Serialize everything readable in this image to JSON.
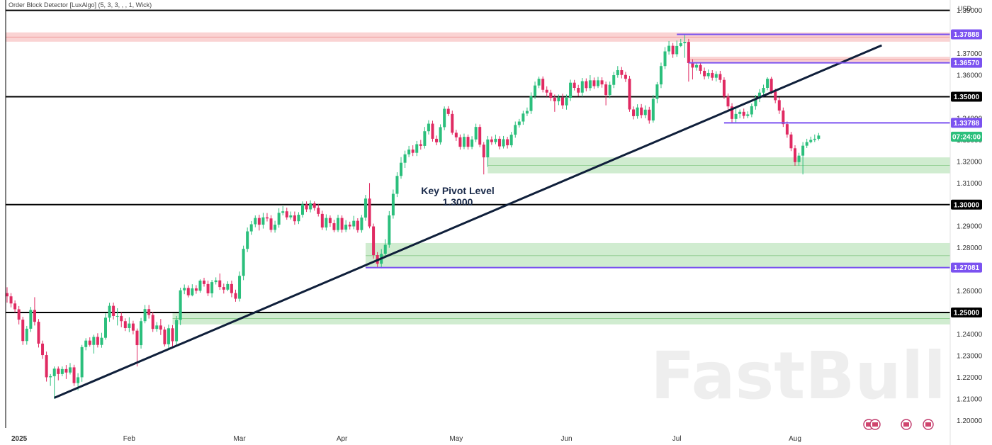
{
  "indicator_label": "Order Block Detector [LuxAlgo] (5, 3, 3, , , 1, Wick)",
  "watermark": "FastBull",
  "chart_data": {
    "type": "candlestick",
    "currency": "USD",
    "ylim": [
      1.1965,
      1.3935
    ],
    "xlim": [
      0,
      222
    ],
    "y_ticks": [
      {
        "value": 1.39,
        "label": "1.39000"
      },
      {
        "value": 1.37,
        "label": "1.37000"
      },
      {
        "value": 1.36,
        "label": "1.36000"
      },
      {
        "value": 1.34,
        "label": "1.34000"
      },
      {
        "value": 1.33,
        "label": "1.33000"
      },
      {
        "value": 1.32,
        "label": "1.32000"
      },
      {
        "value": 1.31,
        "label": "1.31000"
      },
      {
        "value": 1.29,
        "label": "1.29000"
      },
      {
        "value": 1.28,
        "label": "1.28000"
      },
      {
        "value": 1.26,
        "label": "1.26000"
      },
      {
        "value": 1.24,
        "label": "1.24000"
      },
      {
        "value": 1.23,
        "label": "1.23000"
      },
      {
        "value": 1.22,
        "label": "1.22000"
      },
      {
        "value": 1.21,
        "label": "1.21000"
      },
      {
        "value": 1.2,
        "label": "1.20000"
      }
    ],
    "x_ticks": [
      {
        "x": 0,
        "label": "2025",
        "bold": true
      },
      {
        "x": 31,
        "label": "Feb"
      },
      {
        "x": 59,
        "label": "Mar"
      },
      {
        "x": 85,
        "label": "Apr"
      },
      {
        "x": 114,
        "label": "May"
      },
      {
        "x": 142,
        "label": "Jun"
      },
      {
        "x": 170,
        "label": "Jul"
      },
      {
        "x": 200,
        "label": "Aug"
      }
    ],
    "horizontal_levels": [
      {
        "value": 1.39,
        "color": "#000000",
        "badge": null
      },
      {
        "value": 1.35,
        "color": "#000000",
        "label": "1.35000"
      },
      {
        "value": 1.3,
        "color": "#000000",
        "label": "1.30000"
      },
      {
        "value": 1.25,
        "color": "#000000",
        "label": "1.25000"
      }
    ],
    "purple_levels": [
      {
        "value": 1.37888,
        "x_start": 170,
        "label": "1.37888"
      },
      {
        "value": 1.3657,
        "x_start": 173,
        "label": "1.36570"
      },
      {
        "value": 1.33788,
        "x_start": 182,
        "label": "1.33788"
      },
      {
        "value": 1.27081,
        "x_start": 91,
        "label": "1.27081"
      }
    ],
    "current_price": {
      "label": "07:24:00",
      "value": 1.3315
    },
    "zones": [
      {
        "y1": 1.3798,
        "y2": 1.3755,
        "x_start": 0,
        "color": "red"
      },
      {
        "y1": 1.3685,
        "y2": 1.3657,
        "x_start": 173,
        "color": "red"
      },
      {
        "y1": 1.3219,
        "y2": 1.3145,
        "x_start": 122,
        "color": "green"
      },
      {
        "y1": 1.2822,
        "y2": 1.2705,
        "x_start": 91,
        "color": "green"
      },
      {
        "y1": 1.25,
        "y2": 1.2445,
        "x_start": 42,
        "color": "green"
      }
    ],
    "trendline": {
      "x1": 12,
      "y1": 1.2105,
      "x2": 222,
      "y2": 1.3738
    },
    "annotation": {
      "line1": "Key Pivot Level",
      "line2": "1.3000"
    },
    "candles": [
      [
        1.259,
        1.2575,
        1.2617,
        1.2546
      ],
      [
        1.2575,
        1.2542,
        1.259,
        1.2524
      ],
      [
        1.2542,
        1.2515,
        1.2556,
        1.25
      ],
      [
        1.2515,
        1.2467,
        1.253,
        1.2445
      ],
      [
        1.2467,
        1.2368,
        1.248,
        1.235
      ],
      [
        1.2368,
        1.2425,
        1.2438,
        1.2351
      ],
      [
        1.2425,
        1.2512,
        1.2526,
        1.241
      ],
      [
        1.2512,
        1.2457,
        1.2571,
        1.244
      ],
      [
        1.2457,
        1.2356,
        1.247,
        1.2338
      ],
      [
        1.2356,
        1.2303,
        1.237,
        1.2285
      ],
      [
        1.2303,
        1.22,
        1.2319,
        1.218
      ],
      [
        1.22,
        1.2205,
        1.2215,
        1.216
      ],
      [
        1.2205,
        1.224,
        1.225,
        1.21
      ],
      [
        1.224,
        1.2215,
        1.225,
        1.2186
      ],
      [
        1.2215,
        1.2238,
        1.225,
        1.2205
      ],
      [
        1.2238,
        1.2222,
        1.2257,
        1.2192
      ],
      [
        1.2222,
        1.2246,
        1.2266,
        1.2213
      ],
      [
        1.2246,
        1.2173,
        1.2258,
        1.216
      ],
      [
        1.2173,
        1.22,
        1.2219,
        1.214
      ],
      [
        1.22,
        1.234,
        1.235,
        1.2179
      ],
      [
        1.234,
        1.237,
        1.2381,
        1.2325
      ],
      [
        1.237,
        1.235,
        1.2385,
        1.2342
      ],
      [
        1.235,
        1.2387,
        1.2397,
        1.231
      ],
      [
        1.2387,
        1.235,
        1.2404,
        1.2338
      ],
      [
        1.235,
        1.2383,
        1.2406,
        1.2337
      ],
      [
        1.2383,
        1.2476,
        1.2496,
        1.2374
      ],
      [
        1.2476,
        1.2531,
        1.2545,
        1.2457
      ],
      [
        1.2531,
        1.2484,
        1.2546,
        1.2468
      ],
      [
        1.2484,
        1.2484,
        1.252,
        1.244
      ],
      [
        1.2484,
        1.246,
        1.25,
        1.2432
      ],
      [
        1.246,
        1.2428,
        1.2473,
        1.2414
      ],
      [
        1.2428,
        1.2449,
        1.2478,
        1.2409
      ],
      [
        1.2449,
        1.2416,
        1.2462,
        1.2399
      ],
      [
        1.2416,
        1.2349,
        1.2426,
        1.225
      ],
      [
        1.2349,
        1.246,
        1.2475,
        1.2333
      ],
      [
        1.246,
        1.2516,
        1.2535,
        1.245
      ],
      [
        1.2516,
        1.2489,
        1.2535,
        1.2472
      ],
      [
        1.2489,
        1.2424,
        1.2503,
        1.241
      ],
      [
        1.2424,
        1.244,
        1.2456,
        1.2411
      ],
      [
        1.244,
        1.2421,
        1.247,
        1.2396
      ],
      [
        1.2421,
        1.2353,
        1.2434,
        1.2343
      ],
      [
        1.2353,
        1.2427,
        1.2444,
        1.2335
      ],
      [
        1.2427,
        1.2367,
        1.2442,
        1.2343
      ],
      [
        1.2367,
        1.2466,
        1.2484,
        1.2346
      ],
      [
        1.2466,
        1.2603,
        1.2615,
        1.2442
      ],
      [
        1.2603,
        1.2614,
        1.263,
        1.2585
      ],
      [
        1.2614,
        1.258,
        1.2626,
        1.257
      ],
      [
        1.258,
        1.2612,
        1.2631,
        1.2575
      ],
      [
        1.2612,
        1.2601,
        1.2627,
        1.2587
      ],
      [
        1.2601,
        1.2648,
        1.2654,
        1.2592
      ],
      [
        1.2648,
        1.2632,
        1.2661,
        1.262
      ],
      [
        1.2632,
        1.2589,
        1.2648,
        1.2576
      ],
      [
        1.2589,
        1.2641,
        1.2651,
        1.257
      ],
      [
        1.2641,
        1.2649,
        1.2663,
        1.263
      ],
      [
        1.2649,
        1.2618,
        1.2681,
        1.2605
      ],
      [
        1.2618,
        1.2606,
        1.2634,
        1.2588
      ],
      [
        1.2606,
        1.2632,
        1.2645,
        1.2599
      ],
      [
        1.2632,
        1.259,
        1.2648,
        1.2571
      ],
      [
        1.259,
        1.2564,
        1.2606,
        1.255
      ],
      [
        1.2564,
        1.267,
        1.269,
        1.2551
      ],
      [
        1.267,
        1.2795,
        1.281,
        1.265
      ],
      [
        1.2795,
        1.2876,
        1.2894,
        1.278
      ],
      [
        1.2876,
        1.2909,
        1.2924,
        1.286
      ],
      [
        1.2909,
        1.2938,
        1.295,
        1.2895
      ],
      [
        1.2938,
        1.2907,
        1.2953,
        1.288
      ],
      [
        1.2907,
        1.2941,
        1.2962,
        1.2889
      ],
      [
        1.2941,
        1.2936,
        1.2961,
        1.2922
      ],
      [
        1.2936,
        1.2883,
        1.2951,
        1.2871
      ],
      [
        1.2883,
        1.2907,
        1.2925,
        1.287
      ],
      [
        1.2907,
        1.2962,
        1.2983,
        1.2893
      ],
      [
        1.2962,
        1.2969,
        1.2993,
        1.295
      ],
      [
        1.2969,
        1.2941,
        1.2986,
        1.293
      ],
      [
        1.2941,
        1.295,
        1.2968,
        1.2931
      ],
      [
        1.295,
        1.2923,
        1.2968,
        1.2907
      ],
      [
        1.2923,
        1.2953,
        1.2965,
        1.291
      ],
      [
        1.2953,
        1.3001,
        1.3015,
        1.294
      ],
      [
        1.3001,
        1.2978,
        1.3015,
        1.2966
      ],
      [
        1.2978,
        1.3006,
        1.302,
        1.2964
      ],
      [
        1.3006,
        1.2985,
        1.3015,
        1.2972
      ],
      [
        1.2985,
        1.2957,
        1.3002,
        1.2945
      ],
      [
        1.2957,
        1.2894,
        1.2972,
        1.2883
      ],
      [
        1.2894,
        1.2938,
        1.2955,
        1.288
      ],
      [
        1.2938,
        1.2914,
        1.295,
        1.2897
      ],
      [
        1.2914,
        1.2882,
        1.293,
        1.2872
      ],
      [
        1.2882,
        1.2938,
        1.2953,
        1.2873
      ],
      [
        1.2938,
        1.2884,
        1.295,
        1.287
      ],
      [
        1.2884,
        1.2907,
        1.2928,
        1.2873
      ],
      [
        1.2907,
        1.2899,
        1.2921,
        1.2885
      ],
      [
        1.2899,
        1.2925,
        1.2948,
        1.2886
      ],
      [
        1.2925,
        1.2882,
        1.2937,
        1.287
      ],
      [
        1.2882,
        1.294,
        1.2952,
        1.287
      ],
      [
        1.294,
        1.3028,
        1.3045,
        1.2925
      ],
      [
        1.3028,
        1.2899,
        1.31,
        1.289
      ],
      [
        1.2899,
        1.2766,
        1.2912,
        1.275
      ],
      [
        1.2766,
        1.2726,
        1.278,
        1.2708
      ],
      [
        1.2726,
        1.2772,
        1.2794,
        1.2705
      ],
      [
        1.2772,
        1.2814,
        1.284,
        1.276
      ],
      [
        1.2814,
        1.295,
        1.297,
        1.28
      ],
      [
        1.295,
        1.305,
        1.307,
        1.2935
      ],
      [
        1.305,
        1.3133,
        1.315,
        1.3035
      ],
      [
        1.3133,
        1.3194,
        1.322,
        1.312
      ],
      [
        1.3194,
        1.3233,
        1.325,
        1.317
      ],
      [
        1.3233,
        1.3255,
        1.3272,
        1.322
      ],
      [
        1.3255,
        1.324,
        1.3275,
        1.3225
      ],
      [
        1.324,
        1.328,
        1.3295,
        1.3225
      ],
      [
        1.328,
        1.3272,
        1.33,
        1.3255
      ],
      [
        1.3272,
        1.334,
        1.336,
        1.326
      ],
      [
        1.334,
        1.3375,
        1.3391,
        1.3325
      ],
      [
        1.3375,
        1.3305,
        1.3389,
        1.3292
      ],
      [
        1.3305,
        1.3289,
        1.332,
        1.3275
      ],
      [
        1.3289,
        1.3359,
        1.3372,
        1.3278
      ],
      [
        1.3359,
        1.3444,
        1.3455,
        1.3345
      ],
      [
        1.3444,
        1.342,
        1.3456,
        1.341
      ],
      [
        1.342,
        1.3333,
        1.3436,
        1.3324
      ],
      [
        1.3333,
        1.3312,
        1.3347,
        1.3295
      ],
      [
        1.3312,
        1.3268,
        1.3325,
        1.3255
      ],
      [
        1.3268,
        1.3314,
        1.3329,
        1.3257
      ],
      [
        1.3314,
        1.3268,
        1.3325,
        1.3255
      ],
      [
        1.3268,
        1.3302,
        1.3317,
        1.3257
      ],
      [
        1.3302,
        1.336,
        1.3375,
        1.329
      ],
      [
        1.336,
        1.3278,
        1.3372,
        1.3266
      ],
      [
        1.3278,
        1.3219,
        1.329,
        1.314
      ],
      [
        1.3219,
        1.3302,
        1.3318,
        1.3175
      ],
      [
        1.3302,
        1.329,
        1.3316,
        1.3277
      ],
      [
        1.329,
        1.3305,
        1.3324,
        1.328
      ],
      [
        1.3305,
        1.327,
        1.3317,
        1.3256
      ],
      [
        1.327,
        1.3303,
        1.3318,
        1.326
      ],
      [
        1.3303,
        1.3275,
        1.3314,
        1.326
      ],
      [
        1.3275,
        1.3324,
        1.3337,
        1.3265
      ],
      [
        1.3324,
        1.3369,
        1.3385,
        1.331
      ],
      [
        1.3369,
        1.3385,
        1.3397,
        1.3357
      ],
      [
        1.3385,
        1.3422,
        1.3435,
        1.337
      ],
      [
        1.3422,
        1.3434,
        1.345,
        1.341
      ],
      [
        1.3434,
        1.3504,
        1.352,
        1.342
      ],
      [
        1.3504,
        1.3552,
        1.357,
        1.349
      ],
      [
        1.3552,
        1.3583,
        1.3593,
        1.354
      ],
      [
        1.3583,
        1.3532,
        1.3594,
        1.352
      ],
      [
        1.3532,
        1.3519,
        1.3548,
        1.35
      ],
      [
        1.3519,
        1.3495,
        1.3532,
        1.348
      ],
      [
        1.3495,
        1.3479,
        1.351,
        1.343
      ],
      [
        1.3479,
        1.3496,
        1.351,
        1.3461
      ],
      [
        1.3496,
        1.346,
        1.3514,
        1.3443
      ],
      [
        1.346,
        1.3495,
        1.351,
        1.344
      ],
      [
        1.3495,
        1.3565,
        1.3579,
        1.348
      ],
      [
        1.3565,
        1.3541,
        1.3578,
        1.3529
      ],
      [
        1.3541,
        1.3519,
        1.3555,
        1.3503
      ],
      [
        1.3519,
        1.3572,
        1.3587,
        1.35
      ],
      [
        1.3572,
        1.354,
        1.3585,
        1.3525
      ],
      [
        1.354,
        1.3576,
        1.36,
        1.3528
      ],
      [
        1.3576,
        1.3549,
        1.3589,
        1.3536
      ],
      [
        1.3549,
        1.3576,
        1.3592,
        1.354
      ],
      [
        1.3576,
        1.3557,
        1.359,
        1.3542
      ],
      [
        1.3557,
        1.3508,
        1.357,
        1.346
      ],
      [
        1.3508,
        1.3555,
        1.357,
        1.3493
      ],
      [
        1.3555,
        1.36,
        1.3615,
        1.354
      ],
      [
        1.36,
        1.3623,
        1.3642,
        1.3588
      ],
      [
        1.3623,
        1.3601,
        1.3638,
        1.3585
      ],
      [
        1.3601,
        1.3583,
        1.3615,
        1.3568
      ],
      [
        1.3583,
        1.3441,
        1.3597,
        1.343
      ],
      [
        1.3441,
        1.341,
        1.3455,
        1.3395
      ],
      [
        1.341,
        1.345,
        1.3465,
        1.3398
      ],
      [
        1.345,
        1.3415,
        1.3466,
        1.34
      ],
      [
        1.3415,
        1.344,
        1.346,
        1.34
      ],
      [
        1.344,
        1.339,
        1.3453,
        1.3375
      ],
      [
        1.339,
        1.349,
        1.3508,
        1.338
      ],
      [
        1.349,
        1.3557,
        1.3568,
        1.347
      ],
      [
        1.3557,
        1.3642,
        1.3658,
        1.354
      ],
      [
        1.3642,
        1.371,
        1.373,
        1.3628
      ],
      [
        1.371,
        1.3736,
        1.3758,
        1.3695
      ],
      [
        1.3736,
        1.3697,
        1.3749,
        1.368
      ],
      [
        1.3697,
        1.3735,
        1.376,
        1.3685
      ],
      [
        1.3735,
        1.3748,
        1.3768,
        1.373
      ],
      [
        1.3748,
        1.3754,
        1.3789,
        1.368
      ],
      [
        1.3754,
        1.3656,
        1.3768,
        1.357
      ],
      [
        1.3656,
        1.3635,
        1.3674,
        1.358
      ],
      [
        1.3635,
        1.3647,
        1.366,
        1.3621
      ],
      [
        1.3647,
        1.362,
        1.366,
        1.3605
      ],
      [
        1.362,
        1.3595,
        1.3635,
        1.358
      ],
      [
        1.3595,
        1.361,
        1.3626,
        1.3583
      ],
      [
        1.361,
        1.3588,
        1.3623,
        1.3575
      ],
      [
        1.3588,
        1.3605,
        1.3618,
        1.3571
      ],
      [
        1.3605,
        1.3578,
        1.362,
        1.3565
      ],
      [
        1.3578,
        1.3501,
        1.359,
        1.349
      ],
      [
        1.3501,
        1.3455,
        1.3515,
        1.344
      ],
      [
        1.3455,
        1.3397,
        1.347,
        1.338
      ],
      [
        1.3397,
        1.342,
        1.345,
        1.3379
      ],
      [
        1.342,
        1.343,
        1.3441,
        1.34
      ],
      [
        1.343,
        1.3411,
        1.3445,
        1.3398
      ],
      [
        1.3411,
        1.3418,
        1.3432,
        1.3401
      ],
      [
        1.3418,
        1.3456,
        1.3468,
        1.3405
      ],
      [
        1.3456,
        1.3492,
        1.3508,
        1.344
      ],
      [
        1.3492,
        1.3519,
        1.3535,
        1.3475
      ],
      [
        1.3519,
        1.3541,
        1.3556,
        1.3505
      ],
      [
        1.3541,
        1.3583,
        1.359,
        1.353
      ],
      [
        1.3583,
        1.3524,
        1.3592,
        1.3512
      ],
      [
        1.3524,
        1.3484,
        1.3537,
        1.347
      ],
      [
        1.3484,
        1.3436,
        1.3497,
        1.342
      ],
      [
        1.3436,
        1.3373,
        1.345,
        1.336
      ],
      [
        1.3373,
        1.3325,
        1.3385,
        1.331
      ],
      [
        1.3325,
        1.3261,
        1.3337,
        1.3248
      ],
      [
        1.3261,
        1.3197,
        1.3275,
        1.318
      ],
      [
        1.3197,
        1.3227,
        1.324,
        1.318
      ],
      [
        1.3227,
        1.3273,
        1.329,
        1.314
      ],
      [
        1.3273,
        1.329,
        1.3305,
        1.3262
      ],
      [
        1.329,
        1.33,
        1.3315,
        1.3284
      ],
      [
        1.33,
        1.3305,
        1.3325,
        1.329
      ],
      [
        1.3305,
        1.332,
        1.3332,
        1.3297
      ]
    ]
  }
}
